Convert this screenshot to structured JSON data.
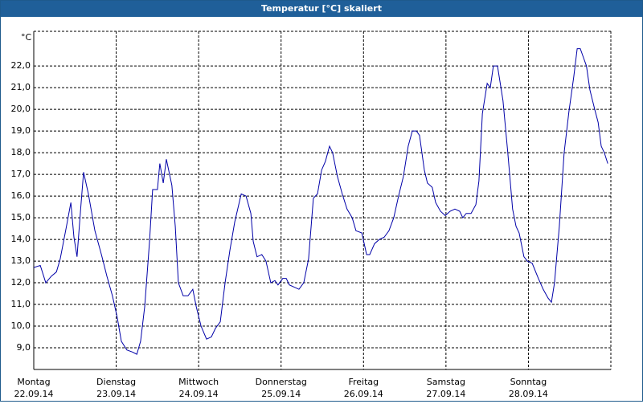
{
  "chart_data": {
    "type": "line",
    "title": "Temperatur [°C] skaliert",
    "y_label": "°C",
    "xlim": [
      0,
      168
    ],
    "ylim": [
      8,
      23.6
    ],
    "grid": true,
    "color": "#0000a8",
    "xticks": [
      {
        "value": 0,
        "label": "Montag"
      },
      {
        "value": 24,
        "label": "Dienstag"
      },
      {
        "value": 48,
        "label": "Mittwoch"
      },
      {
        "value": 72,
        "label": "Donnerstag"
      },
      {
        "value": 96,
        "label": "Freitag"
      },
      {
        "value": 120,
        "label": "Samstag"
      },
      {
        "value": 144,
        "label": "Sonntag"
      }
    ],
    "xtick_dates": [
      "22.09.14",
      "23.09.14",
      "24.09.14",
      "25.09.14",
      "26.09.14",
      "27.09.14",
      "28.09.14"
    ],
    "yticks": [
      {
        "value": 9,
        "label": "9,0"
      },
      {
        "value": 10,
        "label": "10,0"
      },
      {
        "value": 11,
        "label": "11,0"
      },
      {
        "value": 12,
        "label": "12,0"
      },
      {
        "value": 13,
        "label": "13,0"
      },
      {
        "value": 14,
        "label": "14,0"
      },
      {
        "value": 15,
        "label": "15,0"
      },
      {
        "value": 16,
        "label": "16,0"
      },
      {
        "value": 17,
        "label": "17,0"
      },
      {
        "value": 18,
        "label": "18,0"
      },
      {
        "value": 19,
        "label": "19,0"
      },
      {
        "value": 20,
        "label": "20,0"
      },
      {
        "value": 21,
        "label": "21,0"
      },
      {
        "value": 22,
        "label": "22,0"
      }
    ],
    "x": [
      0,
      1.9,
      3.5,
      5.1,
      6.6,
      7.7,
      9.4,
      10.8,
      11.7,
      12.6,
      13.6,
      14.5,
      15.9,
      17.8,
      19.7,
      21.3,
      22.9,
      24.3,
      25.5,
      27.1,
      28.8,
      30.0,
      31.1,
      32.3,
      33.7,
      34.6,
      36.0,
      36.7,
      37.7,
      38.6,
      40.2,
      41.2,
      42.1,
      43.5,
      44.9,
      46.3,
      47.3,
      48.7,
      50.3,
      51.7,
      52.9,
      54.3,
      55.7,
      57.1,
      58.5,
      60.4,
      61.8,
      63.2,
      63.9,
      65.0,
      66.4,
      67.6,
      69.0,
      70.2,
      71.1,
      72.5,
      73.5,
      74.4,
      75.8,
      77.2,
      78.6,
      80.0,
      81.4,
      82.6,
      83.8,
      84.9,
      86.1,
      87.0,
      88.4,
      89.8,
      91.2,
      92.7,
      93.8,
      95.5,
      96.9,
      97.8,
      99.2,
      100.6,
      102.0,
      103.4,
      104.8,
      106.2,
      107.6,
      109.0,
      110.2,
      111.4,
      112.3,
      113.7,
      114.6,
      116.0,
      117.0,
      118.4,
      119.8,
      121.2,
      122.6,
      124.0,
      124.9,
      125.9,
      127.3,
      128.7,
      129.6,
      130.6,
      132.0,
      132.9,
      133.8,
      135.0,
      136.6,
      138.0,
      139.4,
      140.4,
      141.3,
      142.7,
      143.7,
      145.1,
      146.9,
      148.3,
      149.7,
      150.7,
      151.6,
      153.0,
      154.4,
      155.8,
      157.2,
      158.2,
      159.1,
      160.0,
      160.9,
      161.9,
      163.3,
      164.3,
      165.2,
      166.1,
      167.1
    ],
    "series": [
      {
        "name": "Temperatur",
        "color": "#0000a8",
        "values": [
          12.7,
          12.8,
          12.0,
          12.3,
          12.5,
          13.1,
          14.5,
          15.7,
          14.1,
          13.2,
          15.3,
          17.1,
          16.1,
          14.4,
          13.3,
          12.3,
          11.4,
          10.4,
          9.3,
          8.9,
          8.8,
          8.7,
          9.3,
          10.9,
          13.9,
          16.3,
          16.3,
          17.5,
          16.6,
          17.7,
          16.5,
          14.6,
          12.0,
          11.4,
          11.4,
          11.7,
          10.9,
          10.0,
          9.4,
          9.5,
          9.9,
          10.2,
          12.0,
          13.5,
          14.8,
          16.1,
          16.0,
          15.2,
          13.9,
          13.2,
          13.3,
          13.0,
          12.0,
          12.1,
          11.9,
          12.2,
          12.2,
          11.9,
          11.8,
          11.7,
          12.0,
          13.1,
          15.9,
          16.1,
          17.2,
          17.6,
          18.3,
          18.0,
          16.9,
          16.1,
          15.4,
          15.0,
          14.4,
          14.3,
          13.3,
          13.3,
          13.8,
          14.0,
          14.1,
          14.4,
          15.0,
          16.0,
          16.9,
          18.3,
          19.0,
          19.0,
          18.8,
          17.2,
          16.6,
          16.4,
          15.7,
          15.3,
          15.1,
          15.3,
          15.4,
          15.3,
          15.0,
          15.2,
          15.2,
          15.6,
          16.7,
          19.8,
          21.2,
          21.0,
          22.0,
          22.0,
          20.4,
          18.0,
          15.4,
          14.6,
          14.3,
          13.2,
          13.0,
          12.9,
          12.2,
          11.7,
          11.3,
          11.1,
          12.0,
          14.6,
          18.0,
          19.9,
          21.5,
          22.8,
          22.8,
          22.4,
          22.0,
          20.9,
          20.0,
          19.4,
          18.3,
          18.0,
          17.5
        ]
      }
    ]
  }
}
